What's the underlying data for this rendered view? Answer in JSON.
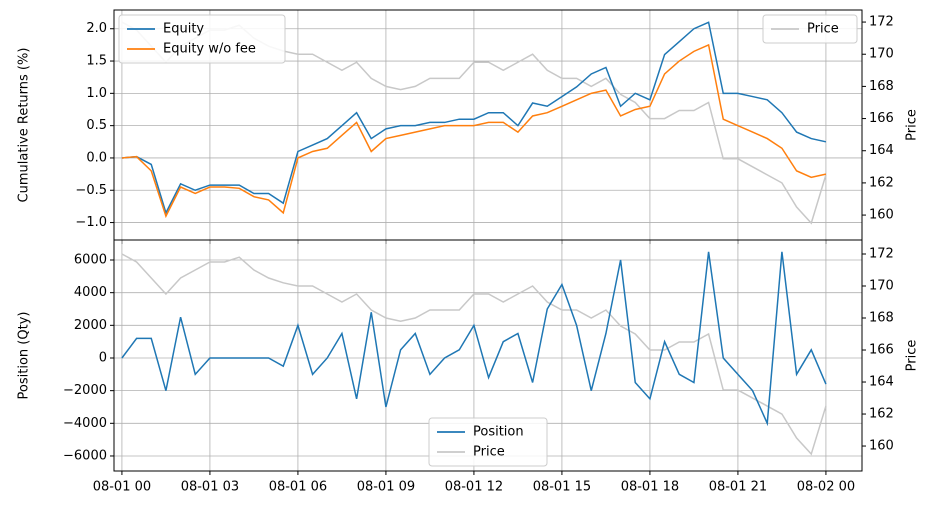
{
  "chart_data": [
    {
      "type": "line",
      "ylabel": "Cumulative Returns (%)",
      "y2label": "Price",
      "x": [
        0,
        0.5,
        1,
        1.5,
        2,
        2.5,
        3,
        3.5,
        4,
        4.5,
        5,
        5.5,
        6,
        6.5,
        7,
        7.5,
        8,
        8.5,
        9,
        9.5,
        10,
        10.5,
        11,
        11.5,
        12,
        12.5,
        13,
        13.5,
        14,
        14.5,
        15,
        15.5,
        16,
        16.5,
        17,
        17.5,
        18,
        18.5,
        19,
        19.5,
        20,
        20.5,
        21,
        21.5,
        22,
        22.5,
        23,
        23.5,
        24
      ],
      "xlim": [
        -0.27,
        25.23
      ],
      "xticks": [
        0,
        3,
        6,
        9,
        12,
        15,
        18,
        21,
        24
      ],
      "ylim": [
        -1.27,
        2.29
      ],
      "yticks": [
        {
          "value": -1.0,
          "label": "−1.0"
        },
        {
          "value": -0.5,
          "label": "−0.5"
        },
        {
          "value": 0,
          "label": "0.0"
        },
        0.5,
        {
          "value": 1,
          "label": "1.0"
        },
        1.5,
        {
          "value": 2,
          "label": "2.0"
        }
      ],
      "y2lim": [
        158.45,
        172.75
      ],
      "y2ticks": [
        160,
        162,
        164,
        166,
        168,
        170,
        172
      ],
      "grid": true,
      "legend_loc": "upper left",
      "legend2_loc": "upper right",
      "series": [
        {
          "name": "Equity",
          "color": "#1f77b4",
          "values": [
            0,
            0.02,
            -0.1,
            -0.85,
            -0.4,
            -0.5,
            -0.42,
            -0.42,
            -0.42,
            -0.55,
            -0.55,
            -0.7,
            0.1,
            0.2,
            0.3,
            0.5,
            0.7,
            0.3,
            0.45,
            0.5,
            0.5,
            0.55,
            0.55,
            0.6,
            0.6,
            0.7,
            0.7,
            0.5,
            0.85,
            0.8,
            0.95,
            1.1,
            1.3,
            1.4,
            0.8,
            1.0,
            0.9,
            1.6,
            1.8,
            2.0,
            2.1,
            1.0,
            1.0,
            0.95,
            0.9,
            0.7,
            0.4,
            0.3,
            0.25
          ]
        },
        {
          "name": "Equity w/o fee",
          "color": "#ff7f0e",
          "values": [
            0,
            0.02,
            -0.2,
            -0.9,
            -0.45,
            -0.55,
            -0.45,
            -0.45,
            -0.47,
            -0.6,
            -0.65,
            -0.85,
            0,
            0.1,
            0.15,
            0.35,
            0.55,
            0.1,
            0.3,
            0.35,
            0.4,
            0.45,
            0.5,
            0.5,
            0.5,
            0.55,
            0.55,
            0.4,
            0.65,
            0.7,
            0.8,
            0.9,
            1.0,
            1.05,
            0.65,
            0.75,
            0.8,
            1.3,
            1.5,
            1.65,
            1.75,
            0.6,
            0.5,
            0.4,
            0.3,
            0.15,
            -0.2,
            -0.3,
            -0.25
          ]
        },
        {
          "name": "Price",
          "color": "#c8c8c8",
          "axis": "y2",
          "values": [
            172,
            171.5,
            170.5,
            169.5,
            170.5,
            171,
            171.5,
            171.5,
            171.8,
            171,
            170.5,
            170.2,
            170,
            170,
            169.5,
            169,
            169.5,
            168.5,
            168,
            167.8,
            168,
            168.5,
            168.5,
            168.5,
            169.5,
            169.5,
            169,
            169.5,
            170,
            169,
            168.5,
            168.5,
            168,
            168.5,
            167.5,
            167,
            166,
            166,
            166.5,
            166.5,
            167,
            163.5,
            163.5,
            163,
            162.5,
            162,
            160.5,
            159.5,
            162.5
          ]
        }
      ]
    },
    {
      "type": "line",
      "ylabel": "Position (Qty)",
      "y2label": "Price",
      "x": [
        0,
        0.5,
        1,
        1.5,
        2,
        2.5,
        3,
        3.5,
        4,
        4.5,
        5,
        5.5,
        6,
        6.5,
        7,
        7.5,
        8,
        8.5,
        9,
        9.5,
        10,
        10.5,
        11,
        11.5,
        12,
        12.5,
        13,
        13.5,
        14,
        14.5,
        15,
        15.5,
        16,
        16.5,
        17,
        17.5,
        18,
        18.5,
        19,
        19.5,
        20,
        20.5,
        21,
        21.5,
        22,
        22.5,
        23,
        23.5,
        24
      ],
      "xlim": [
        -0.27,
        25.23
      ],
      "xticks": [
        {
          "value": 0,
          "label": "08-01 00"
        },
        {
          "value": 3,
          "label": "08-01 03"
        },
        {
          "value": 6,
          "label": "08-01 06"
        },
        {
          "value": 9,
          "label": "08-01 09"
        },
        {
          "value": 12,
          "label": "08-01 12"
        },
        {
          "value": 15,
          "label": "08-01 15"
        },
        {
          "value": 18,
          "label": "08-01 18"
        },
        {
          "value": 21,
          "label": "08-01 21"
        },
        {
          "value": 24,
          "label": "08-02 00"
        }
      ],
      "ylim": [
        -6920,
        7225
      ],
      "yticks": [
        {
          "value": -6000,
          "label": "−6000"
        },
        {
          "value": -4000,
          "label": "−4000"
        },
        {
          "value": -2000,
          "label": "−2000"
        },
        0,
        2000,
        4000,
        6000
      ],
      "y2lim": [
        158.44,
        172.875
      ],
      "y2ticks": [
        160,
        162,
        164,
        166,
        168,
        170,
        172
      ],
      "grid": true,
      "legend_loc": "lower center",
      "series": [
        {
          "name": "Position",
          "color": "#1f77b4",
          "values": [
            0,
            1200,
            1200,
            -2000,
            2500,
            -1000,
            0,
            0,
            0,
            0,
            0,
            -500,
            2000,
            -1000,
            0,
            1500,
            -2500,
            2800,
            -3000,
            500,
            1500,
            -1000,
            0,
            500,
            2000,
            -1200,
            1000,
            1500,
            -1500,
            3000,
            4500,
            2000,
            -2000,
            1500,
            6000,
            -1500,
            -2500,
            1000,
            -1000,
            -1500,
            6500,
            0,
            -1000,
            -2000,
            -4000,
            6500,
            -1000,
            500,
            -1600
          ]
        },
        {
          "name": "Price",
          "color": "#c8c8c8",
          "axis": "y2",
          "values": [
            172,
            171.5,
            170.5,
            169.5,
            170.5,
            171,
            171.5,
            171.5,
            171.8,
            171,
            170.5,
            170.2,
            170,
            170,
            169.5,
            169,
            169.5,
            168.5,
            168,
            167.8,
            168,
            168.5,
            168.5,
            168.5,
            169.5,
            169.5,
            169,
            169.5,
            170,
            169,
            168.5,
            168.5,
            168,
            168.5,
            167.5,
            167,
            166,
            166,
            166.5,
            166.5,
            167,
            163.5,
            163.5,
            163,
            162.5,
            162,
            160.5,
            159.5,
            162.5
          ]
        }
      ]
    }
  ]
}
